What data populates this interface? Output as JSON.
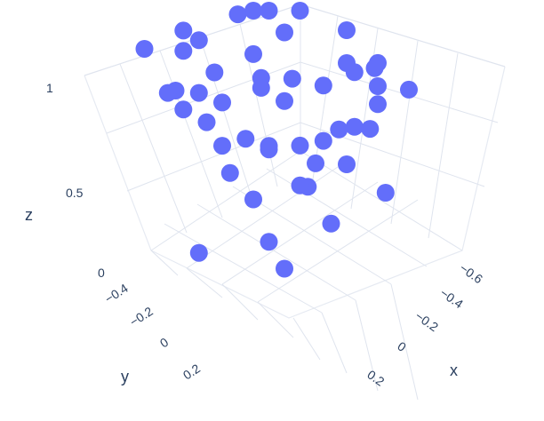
{
  "chart_data": {
    "type": "scatter",
    "title": "",
    "marker_color": "#636efa",
    "grid_color": "#dfe4ee",
    "axes": {
      "x": {
        "title": "x",
        "ticks": [
          "−0.6",
          "−0.4",
          "−0.2",
          "0",
          "0.2"
        ]
      },
      "y": {
        "title": "y",
        "ticks": [
          "−0.4",
          "−0.2",
          "0",
          "0.2"
        ]
      },
      "z": {
        "title": "z",
        "ticks": [
          "0",
          "0.5",
          "1"
        ]
      }
    },
    "points": [
      {
        "x": -0.55,
        "y": 0.1,
        "z": 0.98
      },
      {
        "x": -0.6,
        "y": -0.05,
        "z": 0.85
      },
      {
        "x": -0.45,
        "y": 0.25,
        "z": 0.8
      },
      {
        "x": -0.3,
        "y": 0.35,
        "z": 0.82
      },
      {
        "x": 0.15,
        "y": -0.45,
        "z": 0.93
      },
      {
        "x": 0.25,
        "y": -0.35,
        "z": 0.82
      },
      {
        "x": 0.1,
        "y": -0.48,
        "z": 0.87
      },
      {
        "x": 0.4,
        "y": 0.1,
        "z": 0.5
      },
      {
        "x": 0.2,
        "y": 0.3,
        "z": 0.4
      },
      {
        "x": 0.45,
        "y": -0.2,
        "z": 0.55
      },
      {
        "x": 0.05,
        "y": 0.05,
        "z": 0.1
      },
      {
        "x": -0.2,
        "y": 0.35,
        "z": 0.18
      },
      {
        "x": 0.3,
        "y": 0.15,
        "z": 0.65
      },
      {
        "x": 0.15,
        "y": 0.35,
        "z": 0.6
      },
      {
        "x": 0.05,
        "y": 0.4,
        "z": 0.7
      },
      {
        "x": -0.1,
        "y": 0.3,
        "z": 0.72
      },
      {
        "x": 0.35,
        "y": -0.05,
        "z": 0.7
      },
      {
        "x": 0.35,
        "y": 0.25,
        "z": 0.72
      },
      {
        "x": -0.4,
        "y": 0.05,
        "z": 0.83
      },
      {
        "x": -0.35,
        "y": -0.15,
        "z": 0.86
      },
      {
        "x": 0.0,
        "y": -0.4,
        "z": 0.88
      },
      {
        "x": -0.2,
        "y": 0.2,
        "z": 0.84
      },
      {
        "x": 0.25,
        "y": -0.1,
        "z": 0.8
      },
      {
        "x": 0.2,
        "y": 0.1,
        "z": 0.78
      },
      {
        "x": 0.0,
        "y": 0.25,
        "z": 0.78
      },
      {
        "x": -0.15,
        "y": 0.0,
        "z": 0.9
      },
      {
        "x": 0.1,
        "y": -0.15,
        "z": 0.92
      },
      {
        "x": -0.05,
        "y": 0.1,
        "z": 0.94
      },
      {
        "x": 0.05,
        "y": 0.0,
        "z": 0.99
      },
      {
        "x": -0.25,
        "y": -0.25,
        "z": 0.97
      },
      {
        "x": 0.3,
        "y": -0.3,
        "z": 0.95
      },
      {
        "x": -0.5,
        "y": -0.2,
        "z": 0.96
      },
      {
        "x": -0.45,
        "y": 0.2,
        "z": 0.97
      },
      {
        "x": 0.45,
        "y": 0.2,
        "z": 0.96
      },
      {
        "x": 0.5,
        "y": -0.05,
        "z": 0.94
      },
      {
        "x": -0.1,
        "y": -0.5,
        "z": 0.95
      },
      {
        "x": 0.0,
        "y": 0.5,
        "z": 0.96
      },
      {
        "x": -0.3,
        "y": 0.45,
        "z": 0.94
      },
      {
        "x": 0.3,
        "y": 0.4,
        "z": 0.93
      },
      {
        "x": 0.4,
        "y": -0.4,
        "z": 0.94
      },
      {
        "x": -0.6,
        "y": 0.3,
        "z": 0.95
      },
      {
        "x": 0.55,
        "y": 0.35,
        "z": 0.96
      },
      {
        "x": -0.35,
        "y": -0.45,
        "z": 0.98
      },
      {
        "x": 0.15,
        "y": 0.15,
        "z": 0.99
      },
      {
        "x": -0.15,
        "y": 0.4,
        "z": 0.99
      },
      {
        "x": 0.2,
        "y": -0.25,
        "z": 0.99
      },
      {
        "x": -0.4,
        "y": -0.3,
        "z": 0.99
      },
      {
        "x": 0.5,
        "y": 0.05,
        "z": 0.99
      },
      {
        "x": -0.55,
        "y": -0.35,
        "z": 0.99
      },
      {
        "x": 0.35,
        "y": 0.45,
        "z": 0.99
      }
    ]
  }
}
